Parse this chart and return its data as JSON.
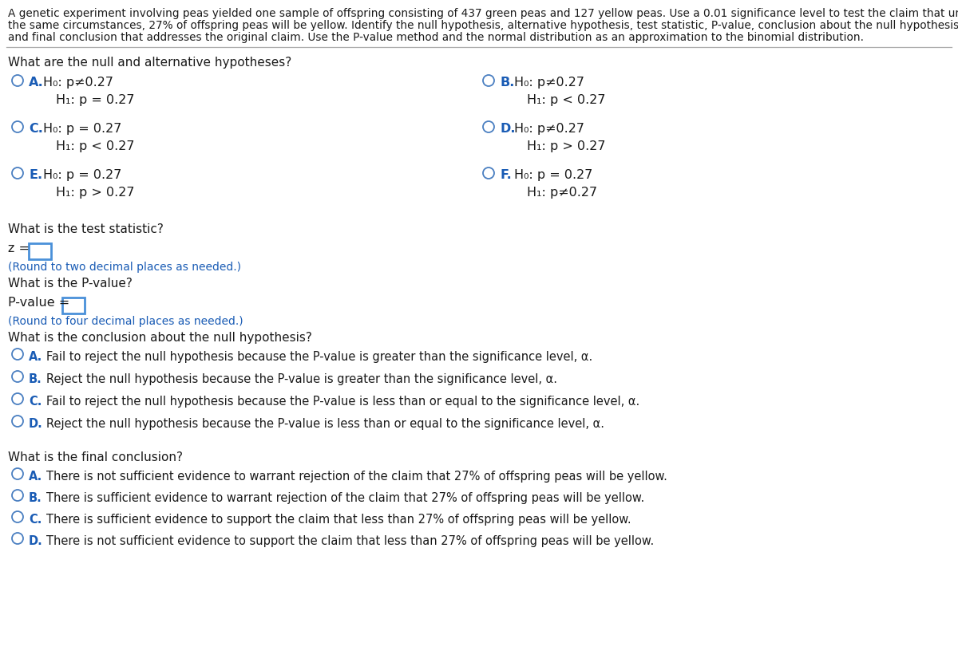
{
  "background_color": "#ffffff",
  "header_lines": [
    "A genetic experiment involving peas yielded one sample of offspring consisting of 437 green peas and 127 yellow peas. Use a 0.01 significance level to test the claim that under",
    "the same circumstances, 27% of offspring peas will be yellow. Identify the null hypothesis, alternative hypothesis, test statistic, P-value, conclusion about the null hypothesis,",
    "and final conclusion that addresses the original claim. Use the P-value method and the normal distribution as an approximation to the binomial distribution."
  ],
  "section1_title": "What are the null and alternative hypotheses?",
  "hypotheses_rows": [
    {
      "left_label": "A.",
      "left_line1": "H₀: p≠0.27",
      "left_line2": "H₁: p = 0.27",
      "right_label": "B.",
      "right_line1": "H₀: p≠0.27",
      "right_line2": "H₁: p < 0.27"
    },
    {
      "left_label": "C.",
      "left_line1": "H₀: p = 0.27",
      "left_line2": "H₁: p < 0.27",
      "right_label": "D.",
      "right_line1": "H₀: p≠0.27",
      "right_line2": "H₁: p > 0.27"
    },
    {
      "left_label": "E.",
      "left_line1": "H₀: p = 0.27",
      "left_line2": "H₁: p > 0.27",
      "right_label": "F.",
      "right_line1": "H₀: p = 0.27",
      "right_line2": "H₁: p≠0.27"
    }
  ],
  "section2_title": "What is the test statistic?",
  "z_label": "z = ",
  "z_hint": "(Round to two decimal places as needed.)",
  "section3_title": "What is the P-value?",
  "pval_label": "P-value = ",
  "pval_hint": "(Round to four decimal places as needed.)",
  "section4_title": "What is the conclusion about the null hypothesis?",
  "options_conclusion": [
    {
      "label": "A.",
      "text": "Fail to reject the null hypothesis because the P-value is greater than the significance level, α."
    },
    {
      "label": "B.",
      "text": "Reject the null hypothesis because the P-value is greater than the significance level, α."
    },
    {
      "label": "C.",
      "text": "Fail to reject the null hypothesis because the P-value is less than or equal to the significance level, α."
    },
    {
      "label": "D.",
      "text": "Reject the null hypothesis because the P-value is less than or equal to the significance level, α."
    }
  ],
  "section5_title": "What is the final conclusion?",
  "options_final": [
    {
      "label": "A.",
      "text": "There is not sufficient evidence to warrant rejection of the claim that 27% of offspring peas will be yellow."
    },
    {
      "label": "B.",
      "text": "There is sufficient evidence to warrant rejection of the claim that 27% of offspring peas will be yellow."
    },
    {
      "label": "C.",
      "text": "There is sufficient evidence to support the claim that less than 27% of offspring peas will be yellow."
    },
    {
      "label": "D.",
      "text": "There is not sufficient evidence to support the claim that less than 27% of offspring peas will be yellow."
    }
  ],
  "label_color": "#1a5cb5",
  "text_color": "#1a1a1a",
  "hint_color": "#1a5cb5",
  "circle_color": "#4a7fc1",
  "box_color": "#4a90d9",
  "header_fontsize": 9.8,
  "section_fontsize": 11.0,
  "option_fontsize": 10.5,
  "hint_fontsize": 10.0,
  "hyp_fontsize": 11.5
}
